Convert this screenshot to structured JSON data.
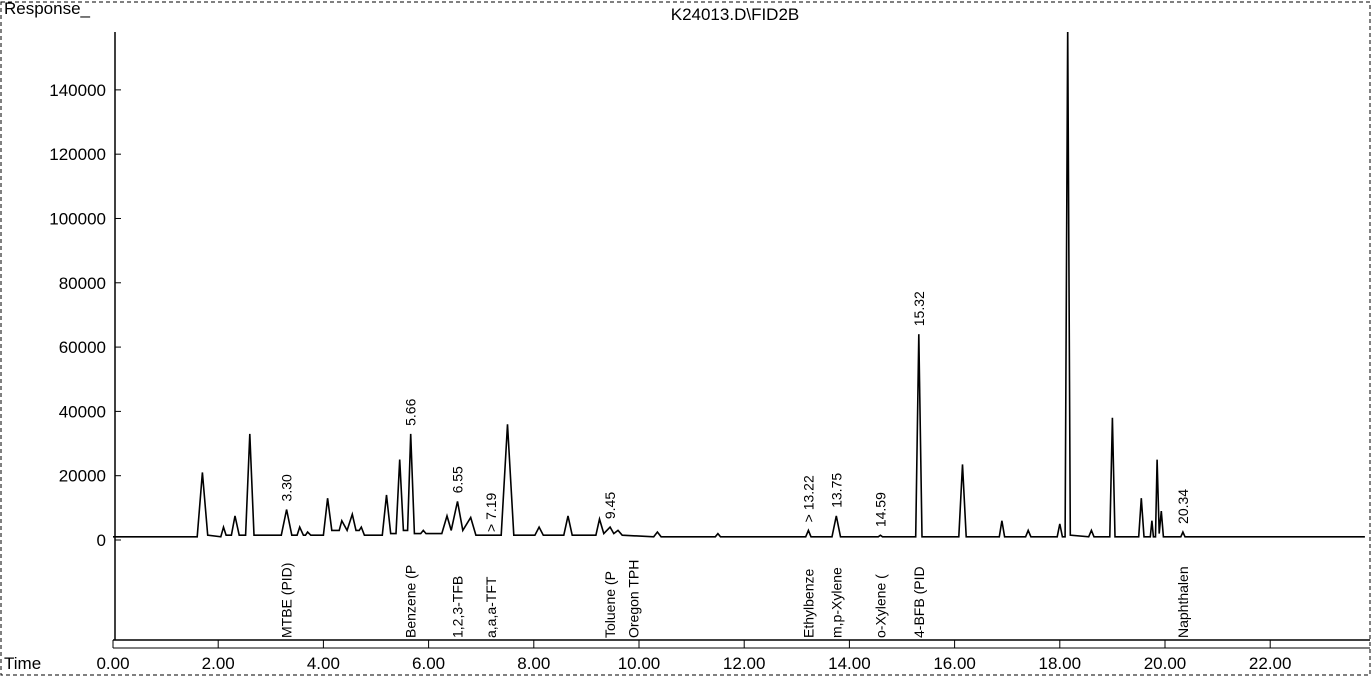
{
  "chart_data": {
    "type": "line",
    "title": "K24013.D\\FID2B",
    "ylabel": "Response_",
    "xlabel": "Time",
    "color": "#000000",
    "xlim": [
      0,
      23.8
    ],
    "ylim": [
      0,
      158000
    ],
    "xticks": [
      {
        "value": 0,
        "label": "0.00"
      },
      {
        "value": 2,
        "label": "2.00"
      },
      {
        "value": 4,
        "label": "4.00"
      },
      {
        "value": 6,
        "label": "6.00"
      },
      {
        "value": 8,
        "label": "8.00"
      },
      {
        "value": 10,
        "label": "10.00"
      },
      {
        "value": 12,
        "label": "12.00"
      },
      {
        "value": 14,
        "label": "14.00"
      },
      {
        "value": 16,
        "label": "16.00"
      },
      {
        "value": 18,
        "label": "18.00"
      },
      {
        "value": 20,
        "label": "20.00"
      },
      {
        "value": 22,
        "label": "22.00"
      }
    ],
    "yticks": [
      0,
      20000,
      40000,
      60000,
      80000,
      100000,
      120000,
      140000
    ],
    "x": [
      0.0,
      1.6,
      1.7,
      1.8,
      2.05,
      2.1,
      2.15,
      2.25,
      2.32,
      2.4,
      2.52,
      2.6,
      2.68,
      3.2,
      3.3,
      3.4,
      3.5,
      3.55,
      3.62,
      3.66,
      3.7,
      3.76,
      4.0,
      4.08,
      4.16,
      4.3,
      4.35,
      4.45,
      4.55,
      4.62,
      4.68,
      4.72,
      4.78,
      5.12,
      5.2,
      5.28,
      5.38,
      5.45,
      5.52,
      5.6,
      5.66,
      5.73,
      5.85,
      5.9,
      5.95,
      6.25,
      6.35,
      6.43,
      6.55,
      6.65,
      6.8,
      6.9,
      7.38,
      7.5,
      7.62,
      8.02,
      8.1,
      8.18,
      8.57,
      8.65,
      8.73,
      9.18,
      9.25,
      9.33,
      9.45,
      9.52,
      9.6,
      9.68,
      10.28,
      10.35,
      10.42,
      11.45,
      11.5,
      11.55,
      13.17,
      13.22,
      13.27,
      13.67,
      13.75,
      13.83,
      14.55,
      14.59,
      14.63,
      15.26,
      15.32,
      15.38,
      16.08,
      16.15,
      16.22,
      16.85,
      16.9,
      16.95,
      17.35,
      17.4,
      17.45,
      17.95,
      18.0,
      18.05,
      18.1,
      18.15,
      18.2,
      18.55,
      18.6,
      18.65,
      18.95,
      19.0,
      19.05,
      19.5,
      19.55,
      19.6,
      19.72,
      19.75,
      19.78,
      19.82,
      19.85,
      19.89,
      19.93,
      19.97,
      20.3,
      20.34,
      20.38,
      23.8
    ],
    "values": [
      1000,
      1000,
      21000,
      1500,
      1000,
      4000,
      1500,
      1500,
      7500,
      1500,
      1500,
      33000,
      1500,
      1500,
      9500,
      1500,
      1500,
      4000,
      1500,
      1500,
      2500,
      1500,
      1500,
      13000,
      3000,
      3000,
      6000,
      3000,
      8000,
      3000,
      3000,
      4000,
      1500,
      1500,
      14000,
      2000,
      2000,
      25000,
      3000,
      3000,
      33000,
      2000,
      2000,
      3000,
      2000,
      2000,
      7500,
      3000,
      12000,
      3000,
      7000,
      1500,
      1500,
      36000,
      1500,
      1500,
      4000,
      1500,
      1500,
      7500,
      1500,
      1500,
      6500,
      2000,
      4000,
      2000,
      3000,
      1500,
      1000,
      2500,
      1000,
      1000,
      2000,
      1000,
      1000,
      3000,
      1000,
      1000,
      7500,
      1000,
      1000,
      1500,
      1000,
      1000,
      64000,
      1000,
      1000,
      23500,
      1000,
      1000,
      6000,
      1000,
      1000,
      3000,
      1000,
      1000,
      5000,
      1000,
      1000,
      160000,
      1500,
      1000,
      3000,
      1000,
      1000,
      38000,
      1000,
      1000,
      13000,
      1000,
      1000,
      6000,
      1000,
      1000,
      25000,
      2000,
      9000,
      1000,
      1000,
      2500,
      1000,
      1000
    ],
    "peak_labels": [
      {
        "x": 3.3,
        "label": "3.30"
      },
      {
        "x": 5.66,
        "label": "5.66"
      },
      {
        "x": 6.55,
        "label": "6.55"
      },
      {
        "x": 7.19,
        "label": "> 7.19"
      },
      {
        "x": 9.45,
        "label": "9.45"
      },
      {
        "x": 13.22,
        "label": "> 13.22"
      },
      {
        "x": 13.75,
        "label": "13.75"
      },
      {
        "x": 14.59,
        "label": "14.59"
      },
      {
        "x": 15.32,
        "label": "15.32"
      },
      {
        "x": 20.34,
        "label": "20.34"
      }
    ],
    "compound_labels": [
      {
        "x": 3.3,
        "label": "MTBE (PID)"
      },
      {
        "x": 5.66,
        "label": "Benzene (P"
      },
      {
        "x": 6.55,
        "label": "1,2,3-TFB"
      },
      {
        "x": 7.19,
        "label": "a,a,a-TFT"
      },
      {
        "x": 9.45,
        "label": "Toluene (P"
      },
      {
        "x": 9.9,
        "label": "Oregon TPH"
      },
      {
        "x": 13.22,
        "label": "Ethylbenze"
      },
      {
        "x": 13.75,
        "label": "m,p-Xylene"
      },
      {
        "x": 14.59,
        "label": "o-Xylene ("
      },
      {
        "x": 15.32,
        "label": "4-BFB (PID"
      },
      {
        "x": 20.34,
        "label": "Naphthalen"
      }
    ]
  }
}
